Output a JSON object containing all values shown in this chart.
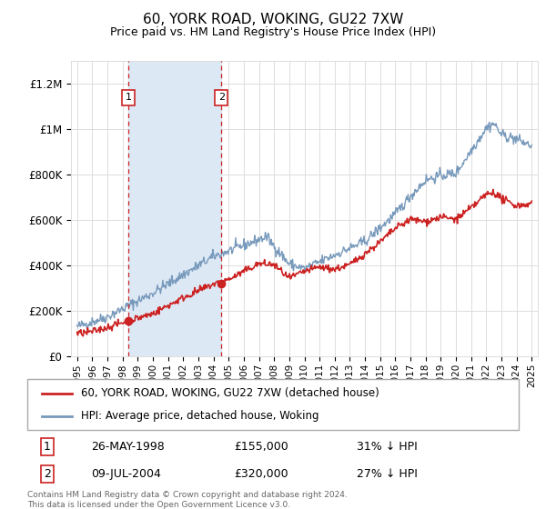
{
  "title": "60, YORK ROAD, WOKING, GU22 7XW",
  "subtitle": "Price paid vs. HM Land Registry's House Price Index (HPI)",
  "ylabel_ticks": [
    "£0",
    "£200K",
    "£400K",
    "£600K",
    "£800K",
    "£1M",
    "£1.2M"
  ],
  "ytick_values": [
    0,
    200000,
    400000,
    600000,
    800000,
    1000000,
    1200000
  ],
  "ylim": [
    0,
    1300000
  ],
  "xlim_start": 1994.6,
  "xlim_end": 2025.4,
  "hpi_color": "#7799bb",
  "price_color": "#cc2222",
  "sale1_x": 1998.38,
  "sale1_y": 155000,
  "sale1_label": "1",
  "sale1_date": "26-MAY-1998",
  "sale1_price": "£155,000",
  "sale1_note": "31% ↓ HPI",
  "sale2_x": 2004.52,
  "sale2_y": 320000,
  "sale2_label": "2",
  "sale2_date": "09-JUL-2004",
  "sale2_price": "£320,000",
  "sale2_note": "27% ↓ HPI",
  "legend_line1": "60, YORK ROAD, WOKING, GU22 7XW (detached house)",
  "legend_line2": "HPI: Average price, detached house, Woking",
  "footnote": "Contains HM Land Registry data © Crown copyright and database right 2024.\nThis data is licensed under the Open Government Licence v3.0.",
  "shade_color": "#dde8f5",
  "grid_color": "#dddddd",
  "background_color": "#ffffff"
}
